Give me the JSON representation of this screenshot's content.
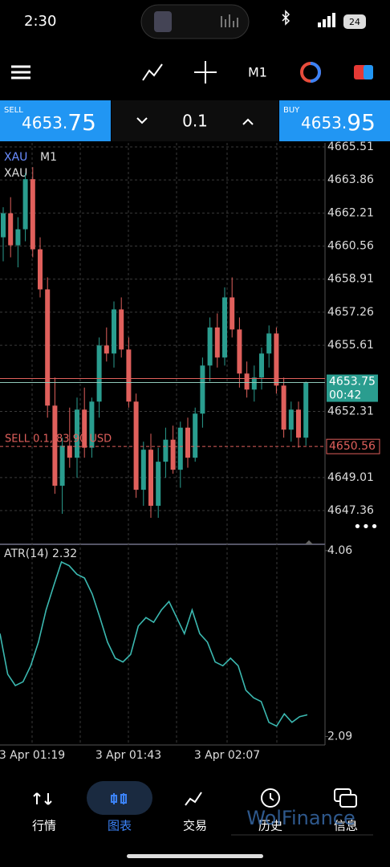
{
  "status_bar": {
    "time": "2:30",
    "battery": "24"
  },
  "toolbar": {
    "timeframe": "M1"
  },
  "trade_panel": {
    "sell_label": "SELL",
    "sell_price_main": "4653.",
    "sell_price_pips": "75",
    "volume": "0.1",
    "buy_label": "BUY",
    "buy_price_main": "4653.",
    "buy_price_pips": "95"
  },
  "chart_data": [
    {
      "type": "candlestick",
      "symbol": "XAU",
      "timeframe": "M1",
      "description": "XAU",
      "up_color": "#2a9d8f",
      "down_color": "#e0605c",
      "ylim": [
        4645.76,
        4665.71
      ],
      "yticks": [
        4665.51,
        4663.86,
        4662.21,
        4660.56,
        4658.91,
        4657.26,
        4655.61,
        4652.31,
        4649.01,
        4647.36
      ],
      "grid": true,
      "bid": 4653.75,
      "ask": 4653.95,
      "bid_label": "4653.75",
      "bar_timer": "00:42",
      "position_label": "SELL 0.1, 83.90 USD",
      "position_price": 4650.56,
      "position_price_label": "4650.56",
      "x_labels": [
        "3 Apr 01:19",
        "3 Apr 01:43",
        "3 Apr 02:07"
      ],
      "ohlc": [
        [
          4661.0,
          4662.5,
          4659.8,
          4662.2
        ],
        [
          4662.2,
          4663.0,
          4660.0,
          4660.6
        ],
        [
          4660.6,
          4662.0,
          4659.5,
          4661.4
        ],
        [
          4661.4,
          4664.2,
          4660.8,
          4663.9
        ],
        [
          4663.9,
          4664.5,
          4660.0,
          4660.4
        ],
        [
          4660.4,
          4661.0,
          4658.0,
          4658.4
        ],
        [
          4658.4,
          4659.0,
          4652.0,
          4652.6
        ],
        [
          4652.6,
          4654.0,
          4648.2,
          4648.6
        ],
        [
          4648.6,
          4651.0,
          4647.2,
          4650.6
        ],
        [
          4650.6,
          4652.5,
          4649.5,
          4650.0
        ],
        [
          4650.0,
          4653.0,
          4649.0,
          4652.4
        ],
        [
          4652.4,
          4653.5,
          4650.0,
          4650.5
        ],
        [
          4650.5,
          4653.0,
          4650.0,
          4652.8
        ],
        [
          4652.8,
          4656.0,
          4652.0,
          4655.6
        ],
        [
          4655.6,
          4656.5,
          4654.8,
          4655.2
        ],
        [
          4655.2,
          4657.8,
          4654.5,
          4657.4
        ],
        [
          4657.4,
          4658.0,
          4655.0,
          4655.4
        ],
        [
          4655.4,
          4656.0,
          4652.5,
          4652.8
        ],
        [
          4652.8,
          4653.2,
          4648.0,
          4648.4
        ],
        [
          4648.4,
          4650.8,
          4647.6,
          4650.4
        ],
        [
          4650.4,
          4651.2,
          4647.0,
          4647.6
        ],
        [
          4647.6,
          4650.5,
          4647.0,
          4649.8
        ],
        [
          4649.8,
          4651.5,
          4649.0,
          4650.9
        ],
        [
          4650.9,
          4651.6,
          4649.2,
          4649.4
        ],
        [
          4649.4,
          4651.8,
          4648.5,
          4651.5
        ],
        [
          4651.5,
          4652.0,
          4649.5,
          4650.0
        ],
        [
          4650.0,
          4652.5,
          4649.8,
          4652.2
        ],
        [
          4652.2,
          4655.0,
          4651.5,
          4654.6
        ],
        [
          4654.6,
          4657.0,
          4653.8,
          4656.5
        ],
        [
          4656.5,
          4657.2,
          4654.5,
          4655.0
        ],
        [
          4655.0,
          4658.5,
          4654.6,
          4658.0
        ],
        [
          4658.0,
          4659.0,
          4656.0,
          4656.4
        ],
        [
          4656.4,
          4657.0,
          4653.5,
          4654.2
        ],
        [
          4654.2,
          4654.8,
          4653.0,
          4653.4
        ],
        [
          4653.4,
          4654.6,
          4652.8,
          4654.0
        ],
        [
          4654.0,
          4655.5,
          4653.4,
          4655.2
        ],
        [
          4655.2,
          4656.6,
          4654.5,
          4656.2
        ],
        [
          4656.2,
          4656.5,
          4653.2,
          4653.6
        ],
        [
          4653.6,
          4654.0,
          4651.0,
          4651.4
        ],
        [
          4651.4,
          4652.8,
          4650.8,
          4652.4
        ],
        [
          4652.4,
          4652.8,
          4650.5,
          4651.0
        ],
        [
          4651.0,
          4653.8,
          4650.6,
          4653.75
        ]
      ]
    },
    {
      "type": "line",
      "indicator": "ATR(14)",
      "indicator_value": 2.32,
      "color": "#3bb8b0",
      "ylim": [
        2.0,
        4.11
      ],
      "yticks": [
        4.06,
        2.09
      ],
      "values": [
        3.18,
        2.75,
        2.63,
        2.67,
        2.84,
        3.09,
        3.43,
        3.69,
        3.94,
        3.9,
        3.81,
        3.77,
        3.6,
        3.35,
        3.09,
        2.92,
        2.88,
        2.96,
        3.26,
        3.35,
        3.3,
        3.43,
        3.52,
        3.35,
        3.18,
        3.43,
        3.18,
        3.09,
        2.88,
        2.84,
        2.92,
        2.84,
        2.58,
        2.5,
        2.46,
        2.24,
        2.2,
        2.33,
        2.24,
        2.3,
        2.32
      ]
    }
  ],
  "nav": {
    "items": [
      "行情",
      "图表",
      "交易",
      "历史",
      "信息"
    ]
  },
  "watermark": "WolFinance"
}
